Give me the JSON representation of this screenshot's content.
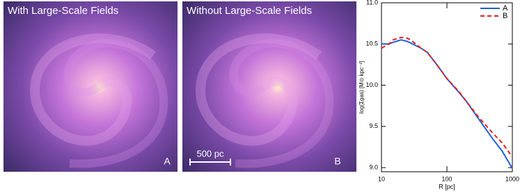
{
  "panels": [
    {
      "title": "With Large-Scale Fields",
      "tag": "A"
    },
    {
      "title": "Without Large-Scale Fields",
      "tag": "B",
      "scale_bar": "500 pc"
    }
  ],
  "chart_data": {
    "type": "line",
    "xlabel": "R  [pc]",
    "ylabel": "log(Σgas)  [M⊙ kpc⁻²]",
    "x": [
      10,
      13,
      15,
      20,
      25,
      30,
      40,
      50,
      70,
      100,
      150,
      200,
      300,
      500,
      700,
      1000
    ],
    "series": [
      {
        "name": "A",
        "color": "#1f5fd6",
        "dash": false,
        "values": [
          10.5,
          10.5,
          10.52,
          10.55,
          10.53,
          10.5,
          10.45,
          10.4,
          10.25,
          10.08,
          9.92,
          9.8,
          9.6,
          9.35,
          9.2,
          8.99
        ]
      },
      {
        "name": "B",
        "color": "#e8201c",
        "dash": true,
        "values": [
          10.45,
          10.5,
          10.55,
          10.58,
          10.57,
          10.53,
          10.45,
          10.4,
          10.25,
          10.08,
          9.93,
          9.8,
          9.62,
          9.42,
          9.3,
          9.13
        ]
      }
    ],
    "xscale": "log",
    "xlim": [
      10,
      1000
    ],
    "xticks": [
      10,
      100,
      1000
    ],
    "ylim": [
      8.95,
      11.0
    ],
    "yticks": [
      {
        "value": 9.0,
        "label": "9.0"
      },
      {
        "value": 9.5,
        "label": "9.5"
      },
      {
        "value": 10.0,
        "label": "10.0"
      },
      {
        "value": 10.5,
        "label": "10.5"
      },
      {
        "value": 11.0,
        "label": "11.0"
      }
    ],
    "legend": "upper right"
  }
}
